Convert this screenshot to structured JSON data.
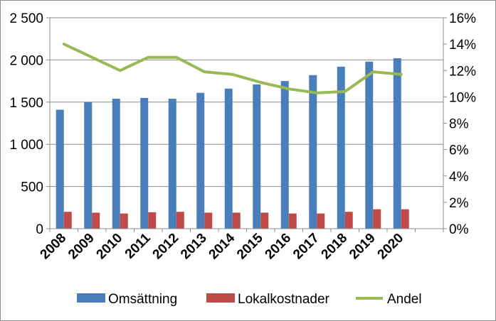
{
  "chart_data": {
    "type": "bar+line",
    "title": "",
    "categories": [
      "2008",
      "2009",
      "2010",
      "2011",
      "2012",
      "2013",
      "2014",
      "2015",
      "2016",
      "2017",
      "2018",
      "2019",
      "2020"
    ],
    "series": [
      {
        "name": "Omsättning",
        "type": "bar",
        "axis": "left",
        "color": "#4a7ebb",
        "values": [
          1410,
          1500,
          1540,
          1550,
          1540,
          1610,
          1660,
          1710,
          1750,
          1820,
          1920,
          1980,
          2020
        ]
      },
      {
        "name": "Lokalkostnader",
        "type": "bar",
        "axis": "left",
        "color": "#be4b48",
        "values": [
          200,
          190,
          180,
          195,
          200,
          190,
          190,
          190,
          180,
          180,
          200,
          230,
          230
        ]
      },
      {
        "name": "Andel",
        "type": "line",
        "axis": "right",
        "color": "#98b954",
        "values": [
          14.0,
          13.0,
          12.0,
          13.0,
          13.0,
          11.9,
          11.7,
          11.1,
          10.6,
          10.3,
          10.4,
          11.9,
          11.7
        ]
      }
    ],
    "ylim_left": [
      0,
      2500
    ],
    "yticks_left": [
      "0",
      "500",
      "1 000",
      "1 500",
      "2 000",
      "2 500"
    ],
    "ylim_right": [
      0,
      16
    ],
    "yticks_right": [
      "0%",
      "2%",
      "4%",
      "6%",
      "8%",
      "10%",
      "12%",
      "14%",
      "16%"
    ],
    "legend": "bottom",
    "grid": "horizontal"
  }
}
